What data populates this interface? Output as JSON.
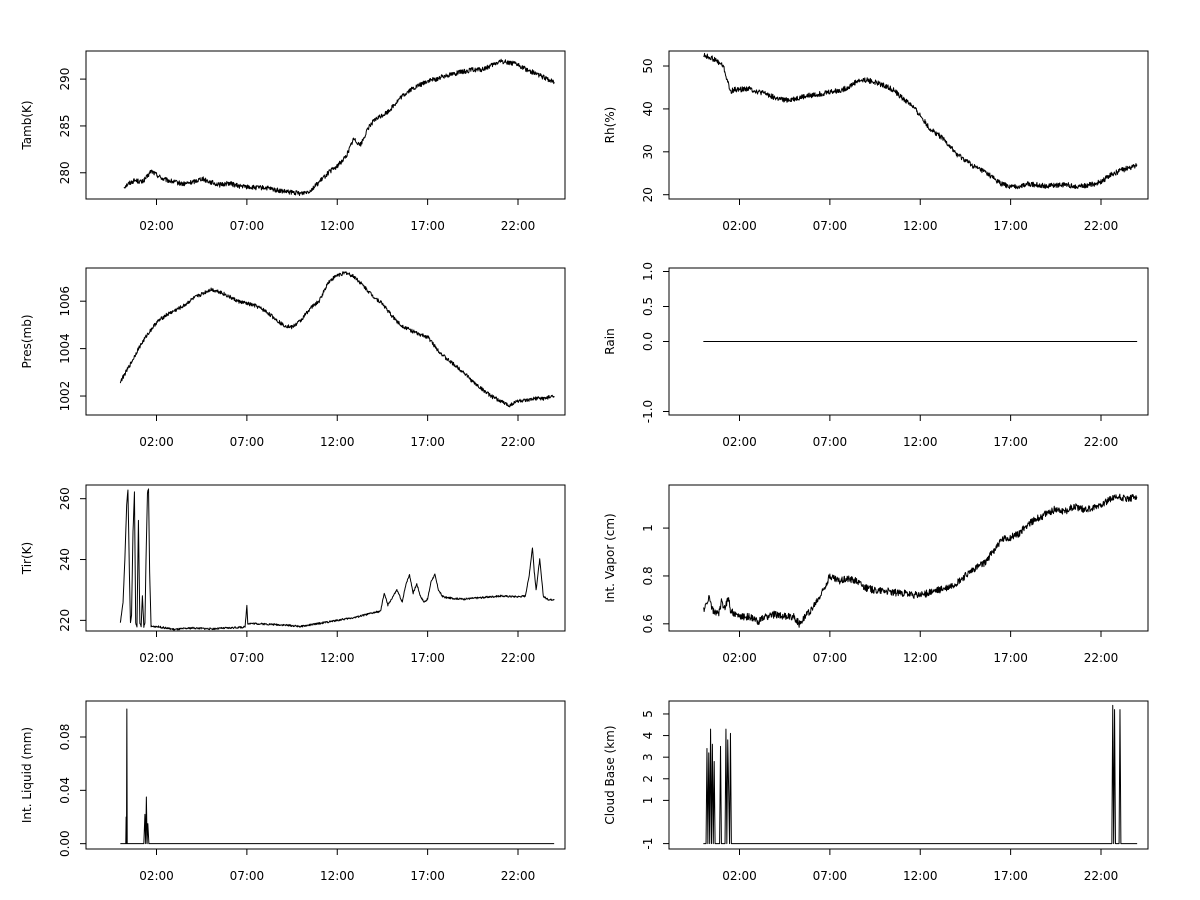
{
  "chart_data": [
    {
      "type": "line",
      "id": "tamb",
      "ylabel": "Tamb(K)",
      "xlabel": "",
      "xticks": [
        2,
        7,
        12,
        17,
        22
      ],
      "xtick_labels": [
        "02:00",
        "07:00",
        "12:00",
        "17:00",
        "22:00"
      ],
      "xlim": [
        -1.9,
        24.6
      ],
      "yticks": [
        280,
        285,
        290
      ],
      "ylim": [
        277.2,
        293.0
      ],
      "noise": 0.25,
      "series": [
        {
          "name": "Tamb",
          "x": [
            0.2,
            0.5,
            0.8,
            1.2,
            1.5,
            1.7,
            2.0,
            2.4,
            3.0,
            3.5,
            4.0,
            4.5,
            5.0,
            5.5,
            6.0,
            6.5,
            7.0,
            7.5,
            8.0,
            8.5,
            9.0,
            9.5,
            10.0,
            10.5,
            11.0,
            11.5,
            12.0,
            12.5,
            12.9,
            13.3,
            13.8,
            14.2,
            14.8,
            15.5,
            16.0,
            16.5,
            17.0,
            17.5,
            18.0,
            18.5,
            19.0,
            19.5,
            20.0,
            20.5,
            21.0,
            21.5,
            22.0,
            22.5,
            23.0,
            23.5,
            24.0
          ],
          "values": [
            278.5,
            278.9,
            279.2,
            279.0,
            279.6,
            280.2,
            279.8,
            279.3,
            279.0,
            278.8,
            279.0,
            279.4,
            279.0,
            278.7,
            278.9,
            278.6,
            278.5,
            278.4,
            278.4,
            278.2,
            278.0,
            277.9,
            277.8,
            278.1,
            279.0,
            280.0,
            280.7,
            281.8,
            283.6,
            283.0,
            285.1,
            285.8,
            286.5,
            288.0,
            288.8,
            289.3,
            289.8,
            290.0,
            290.4,
            290.6,
            290.8,
            291.0,
            291.0,
            291.4,
            291.9,
            291.8,
            291.5,
            291.0,
            290.6,
            290.1,
            289.7
          ]
        }
      ]
    },
    {
      "type": "line",
      "id": "rh",
      "ylabel": "Rh(%)",
      "xlabel": "",
      "xticks": [
        2,
        7,
        12,
        17,
        22
      ],
      "xtick_labels": [
        "02:00",
        "07:00",
        "12:00",
        "17:00",
        "22:00"
      ],
      "xlim": [
        -1.9,
        24.6
      ],
      "yticks": [
        20,
        30,
        40,
        50
      ],
      "ylim": [
        19.0,
        53.5
      ],
      "noise": 0.6,
      "series": [
        {
          "name": "Rh",
          "x": [
            0.0,
            0.4,
            0.8,
            1.1,
            1.3,
            1.5,
            1.7,
            2.0,
            2.5,
            3.0,
            3.5,
            4.0,
            4.5,
            5.0,
            5.5,
            6.0,
            6.5,
            7.0,
            7.5,
            8.0,
            8.5,
            9.0,
            9.5,
            10.0,
            10.5,
            11.0,
            11.5,
            12.0,
            12.5,
            13.0,
            13.5,
            14.0,
            14.5,
            15.0,
            15.5,
            16.0,
            16.5,
            17.0,
            17.5,
            18.0,
            18.5,
            19.0,
            19.5,
            20.0,
            20.5,
            21.0,
            21.5,
            22.0,
            22.5,
            23.0,
            23.5,
            24.0
          ],
          "values": [
            52.5,
            52.0,
            51.0,
            50.0,
            47.0,
            44.0,
            44.5,
            44.5,
            44.8,
            44.0,
            43.5,
            42.5,
            42.0,
            42.3,
            42.8,
            43.2,
            43.5,
            44.0,
            44.2,
            45.0,
            46.5,
            46.8,
            46.2,
            45.5,
            44.5,
            42.5,
            41.0,
            38.5,
            35.5,
            34.0,
            32.0,
            29.5,
            28.0,
            26.5,
            25.5,
            24.0,
            22.5,
            21.8,
            22.0,
            22.5,
            22.3,
            22.0,
            22.2,
            22.4,
            22.0,
            22.0,
            22.4,
            23.0,
            24.5,
            25.5,
            26.2,
            27.0
          ]
        }
      ]
    },
    {
      "type": "line",
      "id": "pres",
      "ylabel": "Pres(mb)",
      "xlabel": "",
      "xticks": [
        2,
        7,
        12,
        17,
        22
      ],
      "xtick_labels": [
        "02:00",
        "07:00",
        "12:00",
        "17:00",
        "22:00"
      ],
      "xlim": [
        -1.9,
        24.6
      ],
      "yticks": [
        1002,
        1004,
        1006
      ],
      "ylim": [
        1001.2,
        1007.4
      ],
      "yticks_display": [
        "1002",
        "1004",
        "1006"
      ],
      "noise": 0.08,
      "series": [
        {
          "name": "Pres",
          "x": [
            0.0,
            0.3,
            0.6,
            1.0,
            1.5,
            2.0,
            2.5,
            3.0,
            3.5,
            4.0,
            4.5,
            5.0,
            5.5,
            6.0,
            6.5,
            7.0,
            7.5,
            8.0,
            8.5,
            9.0,
            9.5,
            10.0,
            10.5,
            11.0,
            11.5,
            12.0,
            12.5,
            13.0,
            13.5,
            14.0,
            14.5,
            15.0,
            15.5,
            16.0,
            16.5,
            17.0,
            17.5,
            18.0,
            18.5,
            19.0,
            19.5,
            20.0,
            20.5,
            21.0,
            21.5,
            22.0,
            22.5,
            23.0,
            23.5,
            24.0
          ],
          "values": [
            1002.6,
            1003.0,
            1003.4,
            1004.0,
            1004.6,
            1005.1,
            1005.4,
            1005.6,
            1005.8,
            1006.1,
            1006.3,
            1006.5,
            1006.4,
            1006.2,
            1006.0,
            1005.9,
            1005.8,
            1005.6,
            1005.3,
            1005.0,
            1004.9,
            1005.2,
            1005.7,
            1006.0,
            1006.8,
            1007.1,
            1007.2,
            1007.0,
            1006.6,
            1006.2,
            1005.9,
            1005.4,
            1005.0,
            1004.8,
            1004.6,
            1004.5,
            1004.0,
            1003.6,
            1003.3,
            1003.0,
            1002.6,
            1002.3,
            1002.0,
            1001.8,
            1001.6,
            1001.8,
            1001.8,
            1001.9,
            1001.9,
            1002.0
          ]
        }
      ]
    },
    {
      "type": "line",
      "id": "rain",
      "ylabel": "Rain",
      "xlabel": "",
      "xticks": [
        2,
        7,
        12,
        17,
        22
      ],
      "xtick_labels": [
        "02:00",
        "07:00",
        "12:00",
        "17:00",
        "22:00"
      ],
      "xlim": [
        -1.9,
        24.6
      ],
      "yticks": [
        -1.0,
        0.0,
        0.5,
        1.0
      ],
      "ytick_labels": [
        "-1.0",
        "0.0",
        "0.5",
        "1.0"
      ],
      "ylim": [
        -1.05,
        1.05
      ],
      "noise": 0,
      "series": [
        {
          "name": "Rain",
          "x": [
            0.0,
            24.0
          ],
          "values": [
            0.0,
            0.0
          ]
        }
      ]
    },
    {
      "type": "line",
      "id": "tir",
      "ylabel": "Tir(K)",
      "xlabel": "",
      "xticks": [
        2,
        7,
        12,
        17,
        22
      ],
      "xtick_labels": [
        "02:00",
        "07:00",
        "12:00",
        "17:00",
        "22:00"
      ],
      "xlim": [
        -1.9,
        24.6
      ],
      "yticks": [
        220,
        240,
        260
      ],
      "ylim": [
        216.5,
        264.5
      ],
      "noise": 0.3,
      "series": [
        {
          "name": "Tir",
          "x": [
            0.0,
            0.15,
            0.25,
            0.35,
            0.42,
            0.5,
            0.56,
            0.62,
            0.7,
            0.78,
            0.85,
            0.92,
            1.0,
            1.08,
            1.15,
            1.22,
            1.3,
            1.36,
            1.42,
            1.5,
            1.56,
            1.62,
            1.7,
            1.8,
            2.0,
            3.0,
            4.0,
            5.0,
            6.0,
            6.9,
            7.0,
            7.05,
            7.2,
            8.0,
            9.0,
            10.0,
            11.0,
            12.0,
            13.0,
            14.0,
            14.4,
            14.6,
            14.8,
            15.0,
            15.3,
            15.6,
            15.8,
            16.0,
            16.2,
            16.4,
            16.6,
            16.8,
            17.0,
            17.2,
            17.4,
            17.6,
            17.8,
            18.0,
            18.5,
            19.0,
            20.0,
            21.0,
            22.0,
            22.4,
            22.6,
            22.8,
            22.9,
            23.0,
            23.2,
            23.4,
            23.6,
            23.8,
            24.0
          ],
          "values": [
            219,
            226,
            240,
            258,
            263,
            236,
            219,
            222,
            249,
            262,
            219,
            218,
            253,
            219,
            218,
            228,
            218,
            219,
            240,
            262,
            263,
            236,
            218,
            218,
            218,
            217,
            217.5,
            217.2,
            217.5,
            217.8,
            225,
            219,
            219,
            218.8,
            218.5,
            218,
            219,
            220,
            221,
            222.5,
            223,
            229,
            225,
            227,
            230,
            226,
            232,
            235,
            229,
            232,
            228,
            226,
            227,
            233,
            235,
            230,
            228,
            227.5,
            227.2,
            227,
            227.5,
            228,
            227.8,
            228,
            234,
            244,
            236,
            230,
            240,
            228,
            227,
            226.8,
            227
          ]
        }
      ]
    },
    {
      "type": "line",
      "id": "vapor",
      "ylabel": "Int. Vapor (cm)",
      "xlabel": "",
      "xticks": [
        2,
        7,
        12,
        17,
        22
      ],
      "xtick_labels": [
        "02:00",
        "07:00",
        "12:00",
        "17:00",
        "22:00"
      ],
      "xlim": [
        -1.9,
        24.6
      ],
      "yticks": [
        0.6,
        0.8,
        1.0
      ],
      "ylim": [
        0.57,
        1.18
      ],
      "noise": 0.015,
      "series": [
        {
          "name": "Vapor",
          "x": [
            0.0,
            0.2,
            0.3,
            0.5,
            0.7,
            0.9,
            1.0,
            1.2,
            1.4,
            1.5,
            1.7,
            2.0,
            2.5,
            3.0,
            3.5,
            4.0,
            4.5,
            5.0,
            5.3,
            5.6,
            6.0,
            6.5,
            7.0,
            7.2,
            7.5,
            8.0,
            8.5,
            9.0,
            9.5,
            10.0,
            10.5,
            11.0,
            11.5,
            12.0,
            12.5,
            13.0,
            13.5,
            14.0,
            14.5,
            15.0,
            15.5,
            16.0,
            16.5,
            17.0,
            17.5,
            18.0,
            18.5,
            19.0,
            19.5,
            20.0,
            20.5,
            21.0,
            21.5,
            22.0,
            22.5,
            23.0,
            23.5,
            24.0
          ],
          "values": [
            0.66,
            0.68,
            0.72,
            0.66,
            0.64,
            0.65,
            0.69,
            0.67,
            0.71,
            0.66,
            0.64,
            0.63,
            0.63,
            0.61,
            0.63,
            0.64,
            0.63,
            0.63,
            0.6,
            0.63,
            0.66,
            0.72,
            0.8,
            0.79,
            0.78,
            0.79,
            0.78,
            0.75,
            0.74,
            0.74,
            0.73,
            0.73,
            0.72,
            0.72,
            0.73,
            0.74,
            0.75,
            0.77,
            0.8,
            0.83,
            0.85,
            0.9,
            0.95,
            0.96,
            0.98,
            1.02,
            1.04,
            1.06,
            1.08,
            1.07,
            1.09,
            1.08,
            1.08,
            1.1,
            1.12,
            1.13,
            1.12,
            1.13
          ]
        }
      ]
    },
    {
      "type": "line",
      "id": "liquid",
      "ylabel": "Int. Liquid (mm)",
      "xlabel": "",
      "xticks": [
        2,
        7,
        12,
        17,
        22
      ],
      "xtick_labels": [
        "02:00",
        "07:00",
        "12:00",
        "17:00",
        "22:00"
      ],
      "xlim": [
        -1.9,
        24.6
      ],
      "yticks": [
        0.0,
        0.04,
        0.08
      ],
      "ytick_labels": [
        "0.00",
        "0.04",
        "0.08"
      ],
      "ylim": [
        -0.004,
        0.107
      ],
      "noise": 0,
      "series": [
        {
          "name": "Liquid",
          "x": [
            0.0,
            0.2,
            0.3,
            0.32,
            0.34,
            0.36,
            0.38,
            0.4,
            0.45,
            1.3,
            1.36,
            1.4,
            1.44,
            1.48,
            1.52,
            1.58,
            24.0
          ],
          "values": [
            0,
            0,
            0,
            0.02,
            0.0,
            0.101,
            0.0,
            0,
            0,
            0,
            0.022,
            0.0,
            0.035,
            0.0,
            0.015,
            0,
            0
          ]
        }
      ]
    },
    {
      "type": "line",
      "id": "cloudbase",
      "ylabel": "Cloud Base (km)",
      "xlabel": "",
      "xticks": [
        2,
        7,
        12,
        17,
        22
      ],
      "xtick_labels": [
        "02:00",
        "07:00",
        "12:00",
        "17:00",
        "22:00"
      ],
      "xlim": [
        -1.9,
        24.6
      ],
      "yticks": [
        -1,
        1,
        2,
        3,
        4,
        5
      ],
      "ylim": [
        -1.25,
        5.6
      ],
      "noise": 0,
      "series": [
        {
          "name": "CloudBase",
          "x": [
            0.0,
            0.15,
            0.2,
            0.25,
            0.3,
            0.35,
            0.4,
            0.45,
            0.5,
            0.55,
            0.6,
            0.65,
            0.9,
            0.95,
            1.0,
            1.2,
            1.25,
            1.3,
            1.35,
            1.4,
            1.45,
            1.5,
            1.55,
            1.6,
            1.7,
            22.6,
            22.65,
            22.7,
            22.75,
            22.8,
            22.9,
            23.0,
            23.05,
            23.1,
            23.15,
            24.0
          ],
          "values": [
            -1,
            -1,
            3.4,
            -1,
            3.2,
            -1,
            4.3,
            -1,
            3.6,
            -1,
            2.8,
            -1,
            -1,
            3.5,
            -1,
            -1,
            4.3,
            -1,
            3.8,
            1.5,
            -1,
            4.1,
            -1,
            -1,
            -1,
            -1,
            5.4,
            -1,
            5.2,
            -1,
            -1,
            -1,
            5.2,
            -1,
            -1,
            -1
          ]
        }
      ]
    }
  ]
}
